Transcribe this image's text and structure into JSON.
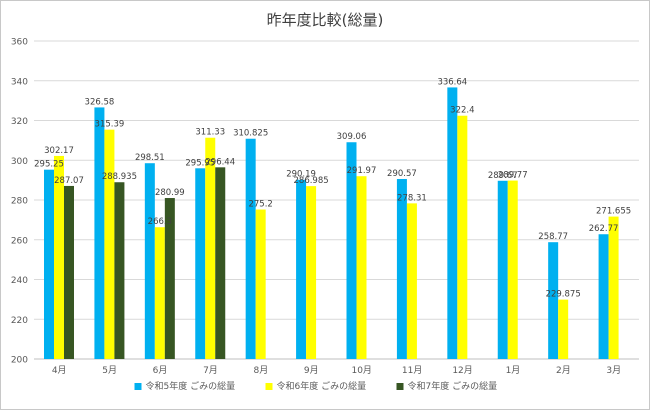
{
  "chart_data": {
    "type": "bar",
    "title": "昨年度比較(総量)",
    "categories": [
      "4月",
      "5月",
      "6月",
      "7月",
      "8月",
      "9月",
      "10月",
      "11月",
      "12月",
      "1月",
      "2月",
      "3月"
    ],
    "ylim": [
      200,
      360
    ],
    "yticks": [
      200,
      220,
      240,
      260,
      280,
      300,
      320,
      340,
      360
    ],
    "grid": true,
    "legend_position": "bottom",
    "series": [
      {
        "name": "令和5年度 ごみの総量",
        "color": "#00b0f0",
        "values": [
          295.25,
          326.58,
          298.51,
          295.95,
          310.825,
          290.19,
          309.06,
          290.57,
          336.64,
          289.67,
          258.77,
          262.77
        ],
        "labels": [
          "295.25",
          "326.58",
          "298.51",
          "295.95",
          "310.825",
          "290.19",
          "309.06",
          "290.57",
          "336.64",
          "289.67",
          "258.77",
          "262.77"
        ]
      },
      {
        "name": "令和6年度 ごみの総量",
        "color": "#ffff00",
        "values": [
          302.17,
          315.39,
          266.3,
          311.33,
          275.2,
          286.985,
          291.97,
          278.31,
          322.4,
          289.77,
          229.875,
          271.655
        ],
        "labels": [
          "302.17",
          "315.39",
          "266.3",
          "311.33",
          "275.2",
          "286.985",
          "291.97",
          "278.31",
          "322.4",
          "289.77",
          "229.875",
          "271.655"
        ]
      },
      {
        "name": "令和7年度 ごみの総量",
        "color": "#375623",
        "values": [
          287.07,
          288.935,
          280.99,
          296.44,
          null,
          null,
          null,
          null,
          null,
          null,
          null,
          null
        ],
        "labels": [
          "287.07",
          "288.935",
          "280.99",
          "296.44",
          "",
          "",
          "",
          "",
          "",
          "",
          "",
          ""
        ]
      }
    ]
  }
}
